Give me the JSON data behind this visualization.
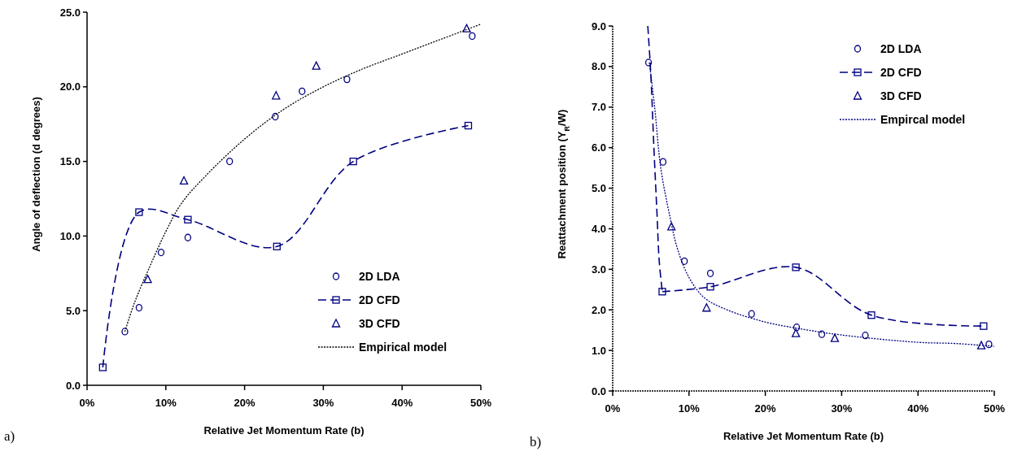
{
  "chart_data": [
    {
      "type": "line",
      "xlabel": "Relative Jet Momentum Rate (b)",
      "ylabel": "Angle of deflection   (d degrees)",
      "annotations": [
        "a)"
      ],
      "xlim": [
        0,
        50
      ],
      "xticks": [
        {
          "value": 0,
          "label": "0%"
        },
        {
          "value": 10,
          "label": "10%"
        },
        {
          "value": 20,
          "label": "20%"
        },
        {
          "value": 30,
          "label": "30%"
        },
        {
          "value": 40,
          "label": "40%"
        },
        {
          "value": 50,
          "label": "50%"
        }
      ],
      "ylim": [
        0,
        25
      ],
      "yticks": [
        {
          "value": 0,
          "label": "0.0"
        },
        {
          "value": 5,
          "label": "5.0"
        },
        {
          "value": 10,
          "label": "10.0"
        },
        {
          "value": 15,
          "label": "15.0"
        },
        {
          "value": 20,
          "label": "20.0"
        },
        {
          "value": 25,
          "label": "25.0"
        }
      ],
      "legend": "bottom right",
      "series": [
        {
          "name": "2D LDA",
          "type": "scatter",
          "marker": "circle",
          "color": "#000080",
          "x": [
            4.8,
            6.6,
            9.4,
            12.8,
            18.1,
            23.9,
            27.3,
            33.0,
            48.9
          ],
          "values": [
            3.6,
            5.2,
            8.9,
            9.9,
            15.0,
            18.0,
            19.7,
            20.5,
            23.4
          ]
        },
        {
          "name": "2D CFD",
          "type": "line",
          "marker": "square",
          "line_style": "dashed",
          "color": "#000080",
          "x": [
            2.0,
            6.6,
            12.8,
            24.1,
            33.8,
            48.4
          ],
          "values": [
            1.2,
            11.6,
            11.1,
            9.3,
            15.0,
            17.4
          ]
        },
        {
          "name": "3D CFD",
          "type": "scatter",
          "marker": "triangle",
          "color": "#000080",
          "x": [
            7.7,
            12.3,
            24.0,
            29.1,
            48.2
          ],
          "values": [
            7.1,
            13.7,
            19.4,
            21.4,
            23.9
          ]
        },
        {
          "name": "Empirical model",
          "type": "line",
          "marker": "none",
          "line_style": "dotted",
          "color": "#000000",
          "x": [
            4.8,
            6,
            8,
            10,
            12,
            15,
            20,
            25,
            30,
            35,
            40,
            45,
            50
          ],
          "values": [
            3.6,
            5.5,
            8.0,
            10.3,
            12.2,
            14.0,
            16.5,
            18.5,
            20.0,
            21.2,
            22.2,
            23.2,
            24.2
          ]
        }
      ]
    },
    {
      "type": "line",
      "xlabel": "Relative Jet Momentum Rate (b)",
      "ylabel": "Reattachment position (Y$_{R}$/W)",
      "annotations": [
        "b)"
      ],
      "xlim": [
        0,
        50
      ],
      "xticks": [
        {
          "value": 0,
          "label": "0%"
        },
        {
          "value": 10,
          "label": "10%"
        },
        {
          "value": 20,
          "label": "20%"
        },
        {
          "value": 30,
          "label": "30%"
        },
        {
          "value": 40,
          "label": "40%"
        },
        {
          "value": 50,
          "label": "50%"
        }
      ],
      "ylim": [
        0,
        9
      ],
      "yticks": [
        {
          "value": 0,
          "label": "0.0"
        },
        {
          "value": 1,
          "label": "1.0"
        },
        {
          "value": 2,
          "label": "2.0"
        },
        {
          "value": 3,
          "label": "3.0"
        },
        {
          "value": 4,
          "label": "4.0"
        },
        {
          "value": 5,
          "label": "5.0"
        },
        {
          "value": 6,
          "label": "6.0"
        },
        {
          "value": 7,
          "label": "7.0"
        },
        {
          "value": 8,
          "label": "8.0"
        },
        {
          "value": 9,
          "label": "9.0"
        }
      ],
      "legend": "top right",
      "series": [
        {
          "name": "2D LDA",
          "type": "scatter",
          "marker": "circle",
          "color": "#000080",
          "x": [
            4.7,
            6.6,
            9.4,
            12.8,
            18.2,
            24.1,
            27.4,
            33.1,
            49.3
          ],
          "values": [
            8.1,
            5.65,
            3.2,
            2.9,
            1.9,
            1.57,
            1.4,
            1.37,
            1.15
          ]
        },
        {
          "name": "2D CFD",
          "type": "line",
          "marker": "square",
          "line_style": "dashed",
          "color": "#000080",
          "x": [
            6.5,
            12.8,
            24.0,
            33.9,
            48.6
          ],
          "values": [
            2.45,
            2.57,
            3.05,
            1.87,
            1.6
          ]
        },
        {
          "type": "line",
          "marker": "none",
          "line_style": "dashed",
          "color": "#000080",
          "x": [
            4.6,
            5.0,
            5.4,
            5.8,
            6.1,
            6.5
          ],
          "values": [
            9.0,
            7.8,
            6.0,
            4.4,
            3.2,
            2.45
          ]
        },
        {
          "name": "3D CFD",
          "type": "scatter",
          "marker": "triangle",
          "color": "#000080",
          "x": [
            7.7,
            12.3,
            24.0,
            29.1,
            48.3
          ],
          "values": [
            4.05,
            2.05,
            1.42,
            1.3,
            1.12
          ]
        },
        {
          "name": "Empircal model",
          "type": "line",
          "marker": "none",
          "line_style": "dotted",
          "color": "#000080",
          "x": [
            4.8,
            5.5,
            6.3,
            7.5,
            8.5,
            10,
            12,
            15,
            20,
            25,
            30,
            40,
            45,
            50
          ],
          "values": [
            8.1,
            7.0,
            5.5,
            4.3,
            3.5,
            2.8,
            2.3,
            2.0,
            1.7,
            1.52,
            1.38,
            1.2,
            1.17,
            1.1
          ]
        }
      ]
    }
  ]
}
